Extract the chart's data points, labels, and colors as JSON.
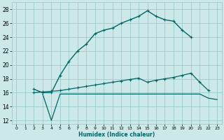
{
  "xlabel": "Humidex (Indice chaleur)",
  "bg_color": "#cce8e8",
  "grid_color": "#99cccc",
  "line_color": "#006666",
  "xlim": [
    -0.5,
    23.5
  ],
  "ylim": [
    11.5,
    29
  ],
  "xticks": [
    0,
    1,
    2,
    3,
    4,
    5,
    6,
    7,
    8,
    9,
    10,
    11,
    12,
    13,
    14,
    15,
    16,
    17,
    18,
    19,
    20,
    21,
    22,
    23
  ],
  "yticks": [
    12,
    14,
    16,
    18,
    20,
    22,
    24,
    26,
    28
  ],
  "line1_x": [
    2,
    3,
    4,
    5,
    6,
    7,
    8,
    9,
    10,
    11,
    12,
    13,
    14,
    15,
    16,
    17,
    18,
    19,
    20
  ],
  "line1_y": [
    16.5,
    16.0,
    16.0,
    18.5,
    20.5,
    22.0,
    23.0,
    24.5,
    25.0,
    25.3,
    26.0,
    26.5,
    27.0,
    27.8,
    27.0,
    26.5,
    26.3,
    25.0,
    24.0
  ],
  "line2_x": [
    2,
    3,
    4,
    5,
    6,
    7,
    8,
    9,
    10,
    11,
    12,
    13,
    14,
    15,
    16,
    17,
    18,
    19,
    20,
    21,
    22
  ],
  "line2_y": [
    16.0,
    16.1,
    16.2,
    16.3,
    16.5,
    16.7,
    16.9,
    17.1,
    17.3,
    17.5,
    17.7,
    17.9,
    18.1,
    17.5,
    17.8,
    18.0,
    18.2,
    18.5,
    18.8,
    17.5,
    16.3
  ],
  "line3_x": [
    3,
    4,
    5,
    6,
    7,
    8,
    9,
    10,
    11,
    12,
    13,
    14,
    15,
    16,
    17,
    18,
    19,
    20,
    21,
    22,
    23
  ],
  "line3_y": [
    15.8,
    12.0,
    15.8,
    15.8,
    15.8,
    15.8,
    15.8,
    15.8,
    15.8,
    15.8,
    15.8,
    15.8,
    15.8,
    15.8,
    15.8,
    15.8,
    15.8,
    15.8,
    15.8,
    15.2,
    15.0
  ]
}
